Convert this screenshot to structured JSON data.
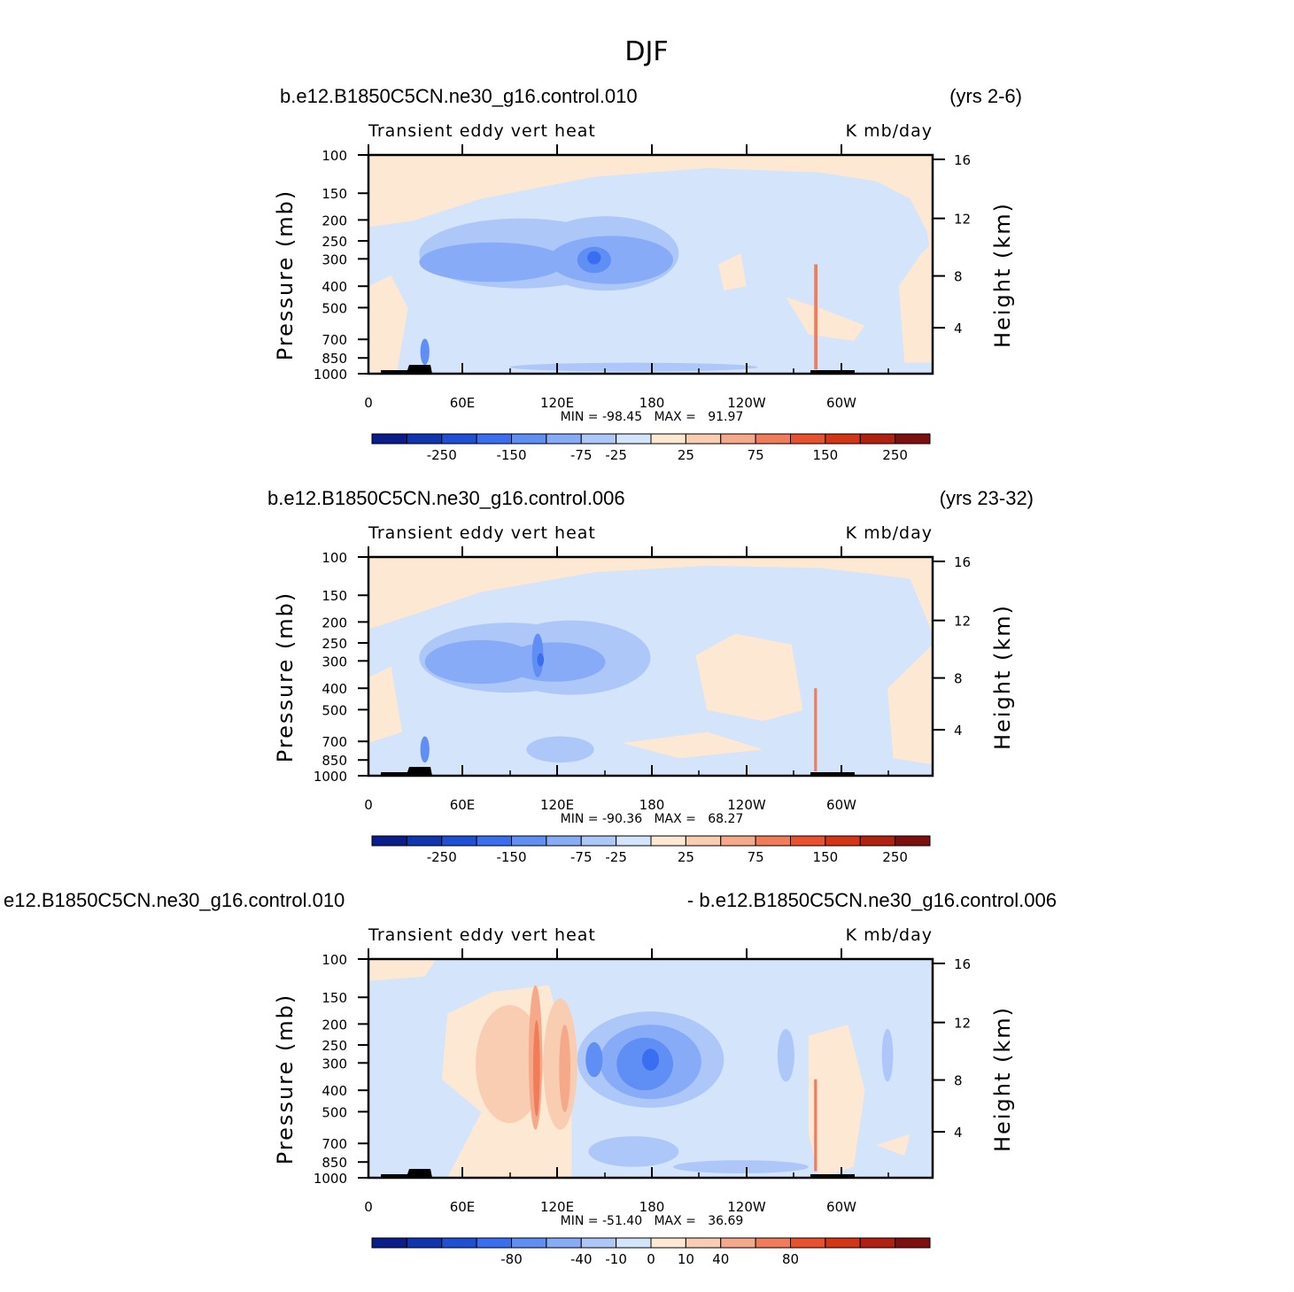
{
  "figure_title": "DJF",
  "colors": {
    "palette": [
      "#0a1d8a",
      "#0f35b0",
      "#1e50d6",
      "#3a6ef0",
      "#5f8ef5",
      "#87abf7",
      "#adc7f8",
      "#d3e4fb",
      "#fde8d4",
      "#f9cdb1",
      "#f5a98a",
      "#f07c5a",
      "#e8502e",
      "#d43515",
      "#b2210f",
      "#7f0f0f"
    ]
  },
  "chart_data": [
    {
      "type": "heatmap",
      "left_title": "b.e12.B1850C5CN.ne30_g16.control.010",
      "right_title": "(yrs 2-6)",
      "variable": "Transient eddy vert heat",
      "units": "K mb/day",
      "ylabel": "Pressure (mb)",
      "ylabel_right": "Height (km)",
      "x_ticks": [
        "0",
        "60E",
        "120E",
        "180",
        "120W",
        "60W"
      ],
      "y_ticks": [
        "100",
        "150",
        "200",
        "250",
        "300",
        "400",
        "500",
        "700",
        "850",
        "1000"
      ],
      "y2_ticks": [
        "16",
        "12",
        "8",
        "4"
      ],
      "min_max": "MIN = -98.45   MAX =   91.97",
      "colorbar_levels": [
        "-250",
        "-150",
        "-75",
        "-25",
        "25",
        "75",
        "150",
        "250"
      ]
    },
    {
      "type": "heatmap",
      "left_title": "b.e12.B1850C5CN.ne30_g16.control.006",
      "right_title": "(yrs 23-32)",
      "variable": "Transient eddy vert heat",
      "units": "K mb/day",
      "ylabel": "Pressure (mb)",
      "ylabel_right": "Height (km)",
      "x_ticks": [
        "0",
        "60E",
        "120E",
        "180",
        "120W",
        "60W"
      ],
      "y_ticks": [
        "100",
        "150",
        "200",
        "250",
        "300",
        "400",
        "500",
        "700",
        "850",
        "1000"
      ],
      "y2_ticks": [
        "16",
        "12",
        "8",
        "4"
      ],
      "min_max": "MIN = -90.36   MAX =   68.27",
      "colorbar_levels": [
        "-250",
        "-150",
        "-75",
        "-25",
        "25",
        "75",
        "150",
        "250"
      ]
    },
    {
      "type": "heatmap",
      "left_title": "e12.B1850C5CN.ne30_g16.control.010",
      "right_title": "- b.e12.B1850C5CN.ne30_g16.control.006",
      "variable": "Transient eddy vert heat",
      "units": "K mb/day",
      "ylabel": "Pressure (mb)",
      "ylabel_right": "Height (km)",
      "x_ticks": [
        "0",
        "60E",
        "120E",
        "180",
        "120W",
        "60W"
      ],
      "y_ticks": [
        "100",
        "150",
        "200",
        "250",
        "300",
        "400",
        "500",
        "700",
        "850",
        "1000"
      ],
      "y2_ticks": [
        "16",
        "12",
        "8",
        "4"
      ],
      "min_max": "MIN = -51.40   MAX =   36.69",
      "colorbar_levels": [
        "-80",
        "-40",
        "-10",
        "0",
        "10",
        "40",
        "80"
      ]
    }
  ]
}
